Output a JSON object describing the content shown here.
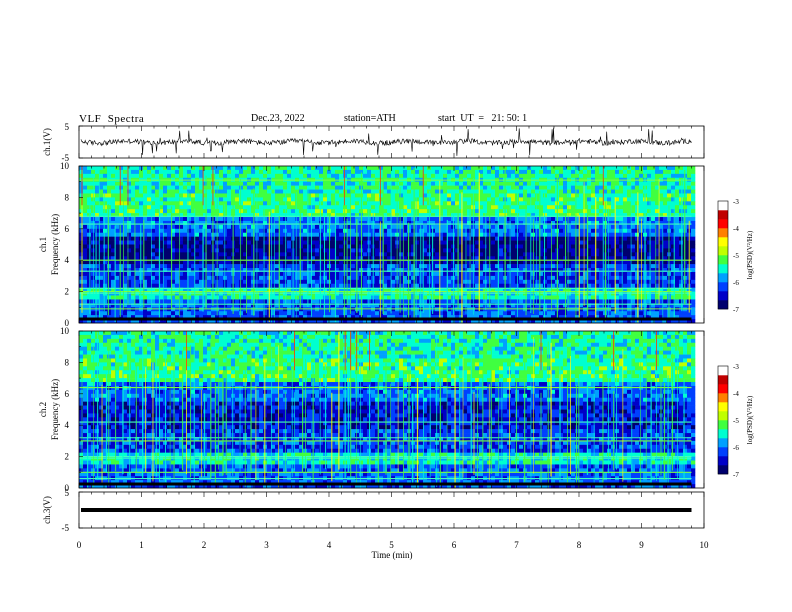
{
  "header": {
    "title": "VLF  Spectra",
    "date": "Dec.23, 2022",
    "station": "station=ATH",
    "start": "start  UT  =   21: 50: 1"
  },
  "chart_data": {
    "type": "heatmap",
    "title": "VLF  Spectra",
    "xlabel": "Time  (min)",
    "xlim": [
      0,
      10
    ],
    "xticks": [
      "0",
      "1",
      "2",
      "3",
      "4",
      "5",
      "6",
      "7",
      "8",
      "9",
      "10"
    ],
    "data_end_minute": 9.8,
    "panels": [
      {
        "kind": "timeseries",
        "ylabel": "ch.1(V)",
        "yticks": [
          "5",
          "-5"
        ],
        "ylim": [
          -5,
          5
        ],
        "description_series": "ch.1 waveform",
        "mean": 0.0
      },
      {
        "kind": "spectrogram",
        "ylabel": "Frequency  (kHz)",
        "channel_label": "ch.1",
        "yticks": [
          "0",
          "2",
          "4",
          "6",
          "8",
          "10"
        ],
        "ylim": [
          0,
          10
        ],
        "colorbar": {
          "label": "log(PSD)(V²/Hz)",
          "ticks": [
            "-3",
            "-4",
            "-5",
            "-6",
            "-7"
          ],
          "range": [
            -7,
            -3
          ]
        }
      },
      {
        "kind": "spectrogram",
        "ylabel": "Frequency  (kHz)",
        "channel_label": "ch.2",
        "yticks": [
          "0",
          "2",
          "4",
          "6",
          "8",
          "10"
        ],
        "ylim": [
          0,
          10
        ],
        "colorbar": {
          "label": "log(PSD)(V²/Hz)",
          "ticks": [
            "-3",
            "-4",
            "-5",
            "-6",
            "-7"
          ],
          "range": [
            -7,
            -3
          ]
        }
      },
      {
        "kind": "timeseries",
        "ylabel": "ch.3(V)",
        "yticks": [
          "5",
          "-5"
        ],
        "ylim": [
          -5,
          5
        ],
        "mean": 0.0
      }
    ],
    "colormap": [
      "#00006e",
      "#0000c8",
      "#0040ff",
      "#00a0ff",
      "#00ffd0",
      "#40ff40",
      "#c0ff00",
      "#ffff00",
      "#ff8000",
      "#ff0000",
      "#c00000",
      "#ffffff"
    ]
  }
}
